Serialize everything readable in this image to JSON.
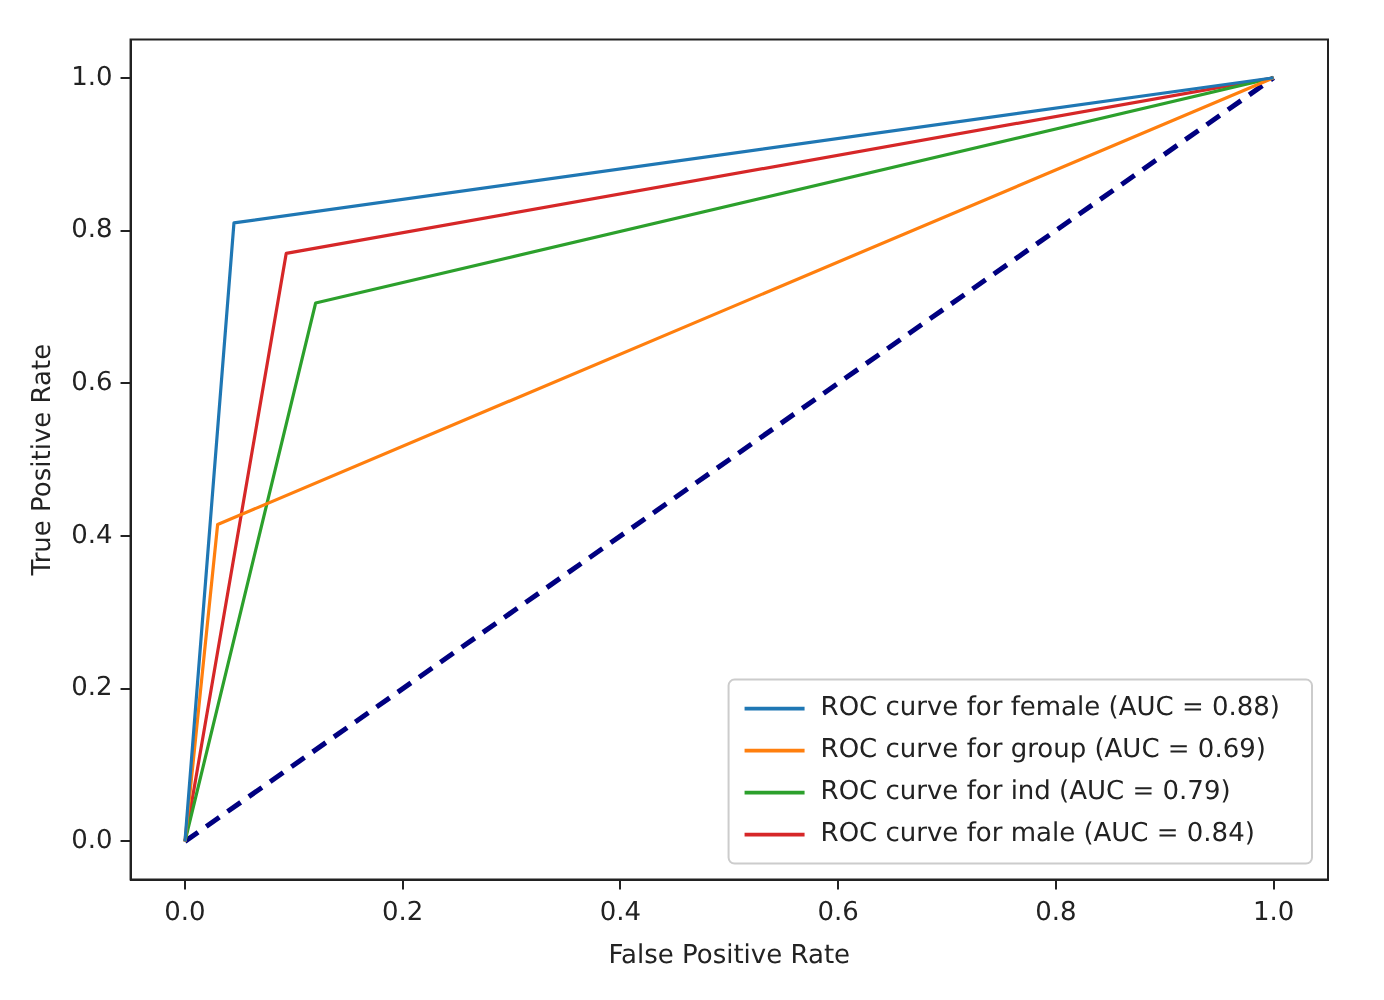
{
  "chart_data": {
    "type": "line",
    "xlabel": "False Positive Rate",
    "ylabel": "True Positive Rate",
    "xlim": [
      -0.05,
      1.05
    ],
    "ylim": [
      -0.05,
      1.05
    ],
    "xticks": [
      {
        "value": 0,
        "label": "0.0"
      },
      {
        "value": 0.2,
        "label": "0.2"
      },
      {
        "value": 0.4,
        "label": "0.4"
      },
      {
        "value": 0.6,
        "label": "0.6"
      },
      {
        "value": 0.8,
        "label": "0.8"
      },
      {
        "value": 1,
        "label": "1.0"
      }
    ],
    "yticks": [
      {
        "value": 0,
        "label": "0.0"
      },
      {
        "value": 0.2,
        "label": "0.2"
      },
      {
        "value": 0.4,
        "label": "0.4"
      },
      {
        "value": 0.6,
        "label": "0.6"
      },
      {
        "value": 0.8,
        "label": "0.8"
      },
      {
        "value": 1,
        "label": "1.0"
      }
    ],
    "grid": false,
    "legend": "bottom right",
    "marker": "none",
    "series": [
      {
        "name": "ROC curve for female (AUC = 0.88)",
        "color": "#1f77b4",
        "x": [
          0,
          0.045,
          1
        ],
        "values": [
          0,
          0.81,
          1
        ]
      },
      {
        "name": "ROC curve for group (AUC = 0.69)",
        "color": "#ff7f0e",
        "x": [
          0,
          0.03,
          1
        ],
        "values": [
          0,
          0.415,
          1
        ]
      },
      {
        "name": "ROC curve for ind (AUC = 0.79)",
        "color": "#2ca02c",
        "x": [
          0,
          0.12,
          1
        ],
        "values": [
          0,
          0.705,
          1
        ]
      },
      {
        "name": "ROC curve for male (AUC = 0.84)",
        "color": "#d62728",
        "x": [
          0,
          0.093,
          1
        ],
        "values": [
          0,
          0.77,
          1
        ]
      },
      {
        "color": "#000080",
        "x": [
          0,
          1
        ],
        "values": [
          0,
          1
        ],
        "line_style": "dashed"
      }
    ]
  }
}
